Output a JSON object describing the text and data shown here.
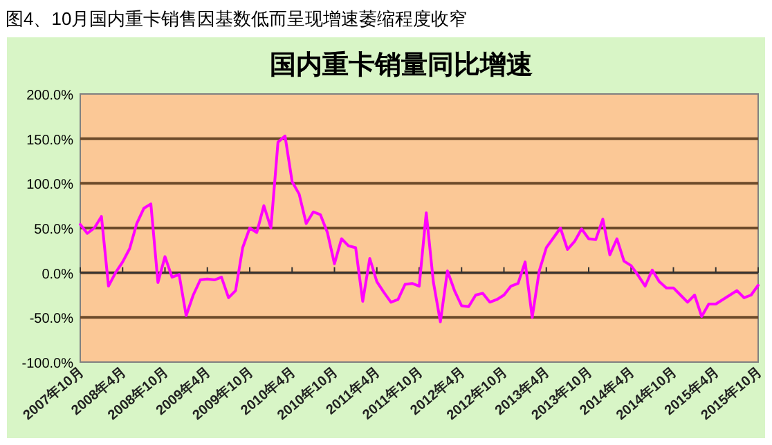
{
  "chart_data": {
    "type": "line",
    "title": "国内重卡销量同比增速",
    "annotations": [
      "图4、10月国内重卡销售因基数低而呈现增速萎缩程度收窄"
    ],
    "categories": [
      "2007年10月",
      null,
      null,
      null,
      null,
      null,
      "2008年4月",
      null,
      null,
      null,
      null,
      null,
      "2008年10月",
      null,
      null,
      null,
      null,
      null,
      "2009年4月",
      null,
      null,
      null,
      null,
      null,
      "2009年10月",
      null,
      null,
      null,
      null,
      null,
      "2010年4月",
      null,
      null,
      null,
      null,
      null,
      "2010年10月",
      null,
      null,
      null,
      null,
      null,
      "2011年4月",
      null,
      null,
      null,
      null,
      null,
      "2011年10月",
      null,
      null,
      null,
      null,
      null,
      "2012年4月",
      null,
      null,
      null,
      null,
      null,
      "2012年10月",
      null,
      null,
      null,
      null,
      null,
      "2013年4月",
      null,
      null,
      null,
      null,
      null,
      "2013年10月",
      null,
      null,
      null,
      null,
      null,
      "2014年4月",
      null,
      null,
      null,
      null,
      null,
      "2014年10月",
      null,
      null,
      null,
      null,
      null,
      "2015年4月",
      null,
      null,
      null,
      null,
      null,
      "2015年10月"
    ],
    "series": [
      {
        "color": "#ff00ff",
        "values": [
          54,
          44,
          50,
          63,
          -15,
          0,
          12,
          27,
          55,
          72,
          77,
          -11,
          18,
          -5,
          -2,
          -48,
          -25,
          -8,
          -7,
          -8,
          -5,
          -28,
          -20,
          28,
          50,
          45,
          75,
          50,
          146,
          153,
          102,
          88,
          55,
          68,
          65,
          45,
          10,
          38,
          30,
          28,
          -32,
          16,
          -10,
          -22,
          -33,
          -30,
          -13,
          -12,
          -15,
          67,
          -10,
          -55,
          2,
          -20,
          -37,
          -38,
          -25,
          -23,
          -33,
          -30,
          -25,
          -15,
          -12,
          12,
          -50,
          2,
          28,
          39,
          50,
          26,
          35,
          49,
          38,
          37,
          60,
          20,
          38,
          13,
          8,
          -3,
          -15,
          3,
          -10,
          -17,
          -17,
          -25,
          -33,
          -25,
          -49,
          -35,
          -35,
          -30,
          -25,
          -20,
          -28,
          -25,
          -14
        ]
      }
    ],
    "ylim": [
      -100,
      200
    ],
    "yticks": [
      {
        "value": -100,
        "label": "-100.0%"
      },
      {
        "value": -50,
        "label": "-50.0%"
      },
      {
        "value": 0,
        "label": "0.0%"
      },
      {
        "value": 50,
        "label": "50.0%"
      },
      {
        "value": 100,
        "label": "100.0%"
      },
      {
        "value": 150,
        "label": "150.0%"
      },
      {
        "value": 200,
        "label": "200.0%"
      }
    ],
    "grid": "y",
    "marker": "none",
    "line_style": "solid"
  }
}
